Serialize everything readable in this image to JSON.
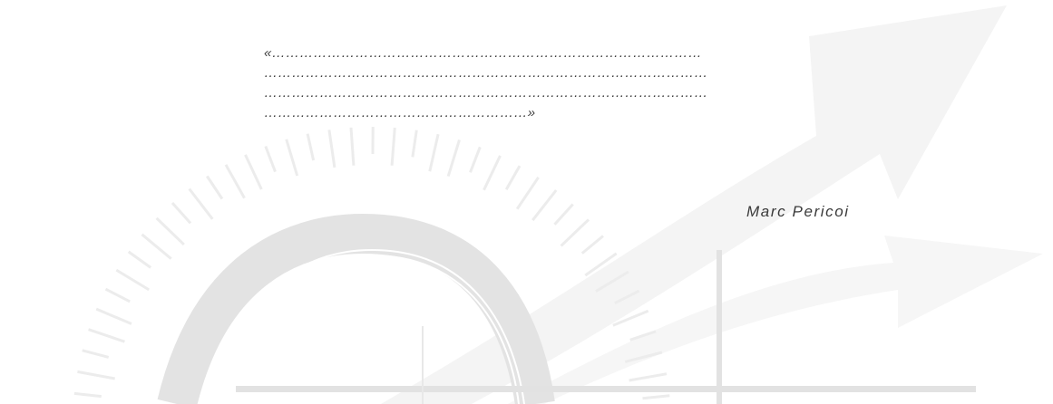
{
  "quote": {
    "lines": [
      "«…………………………………………………………………………………",
      "……………………………………………………………………………………",
      "……………………………………………………………………………………",
      "…………………………………………………»"
    ]
  },
  "author": "Marc Pericoi",
  "colors": {
    "text": "#3c3c3c",
    "decoration": "#e6e6e6"
  }
}
